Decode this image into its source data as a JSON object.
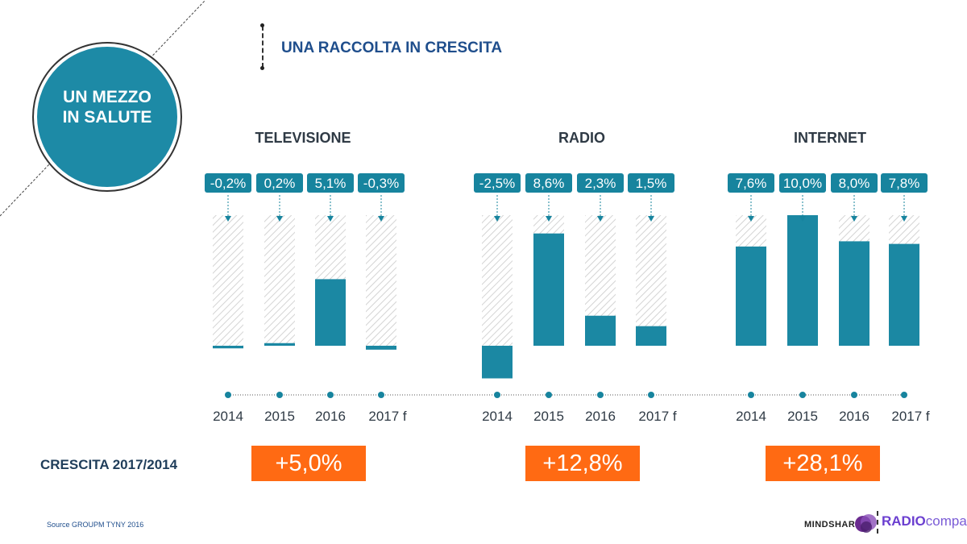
{
  "page": {
    "title": "UNA RACCOLTA IN CRESCITA",
    "badge": "UN MEZZO\nIN SALUTE",
    "growth_label": "CRESCITA 2017/2014",
    "source": "Source GROUPM TYNY 2016"
  },
  "logos": {
    "mindshare": "MINDSHARE",
    "radiocompass_bold": "RADIO",
    "radiocompass_rest": "compass"
  },
  "colors": {
    "bar": "#1b88a3",
    "label_box": "#17849e",
    "growth_box": "#ff6a13",
    "hatch": "#d7d7d7"
  },
  "chart_data": [
    {
      "type": "bar",
      "title": "TELEVISIONE",
      "categories": [
        "2014",
        "2015",
        "2016",
        "2017 f"
      ],
      "values": [
        -0.2,
        0.2,
        5.1,
        -0.3
      ],
      "labels": [
        "-0,2%",
        "0,2%",
        "5,1%",
        "-0,3%"
      ],
      "growth": "+5,0%"
    },
    {
      "type": "bar",
      "title": "RADIO",
      "categories": [
        "2014",
        "2015",
        "2016",
        "2017 f"
      ],
      "values": [
        -2.5,
        8.6,
        2.3,
        1.5
      ],
      "labels": [
        "-2,5%",
        "8,6%",
        "2,3%",
        "1,5%"
      ],
      "growth": "+12,8%"
    },
    {
      "type": "bar",
      "title": "INTERNET",
      "categories": [
        "2014",
        "2015",
        "2016",
        "2017 f"
      ],
      "values": [
        7.6,
        10.0,
        8.0,
        7.8
      ],
      "labels": [
        "7,6%",
        "10,0%",
        "8,0%",
        "7,8%"
      ],
      "growth": "+28,1%"
    }
  ]
}
